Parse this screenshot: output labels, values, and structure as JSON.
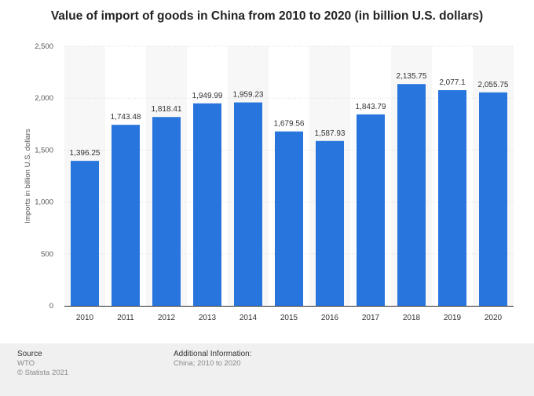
{
  "chart_data": {
    "type": "bar",
    "title": "Value of import of goods in China from 2010 to 2020 (in billion U.S. dollars)",
    "xlabel": "",
    "ylabel": "Imports in billion U.S. dollars",
    "ylim": [
      0,
      2500
    ],
    "yticks": [
      0,
      500,
      1000,
      1500,
      2000,
      2500
    ],
    "ytick_labels": [
      "0",
      "500",
      "1,000",
      "1,500",
      "2,000",
      "2,500"
    ],
    "categories": [
      "2010",
      "2011",
      "2012",
      "2013",
      "2014",
      "2015",
      "2016",
      "2017",
      "2018",
      "2019",
      "2020"
    ],
    "values": [
      1396.25,
      1743.48,
      1818.41,
      1949.99,
      1959.23,
      1679.56,
      1587.93,
      1843.79,
      2135.75,
      2077.1,
      2055.75
    ],
    "value_labels": [
      "1,396.25",
      "1,743.48",
      "1,818.41",
      "1,949.99",
      "1,959.23",
      "1,679.56",
      "1,587.93",
      "1,843.79",
      "2,135.75",
      "2,077.1",
      "2,055.75"
    ],
    "bar_color": "#2876dd",
    "band_color": "#f7f7f7",
    "grid": true
  },
  "footer": {
    "source_label": "Source",
    "source_value": "WTO",
    "copyright": "© Statista 2021",
    "additional_label": "Additional Information:",
    "additional_value": "China; 2010 to 2020"
  }
}
